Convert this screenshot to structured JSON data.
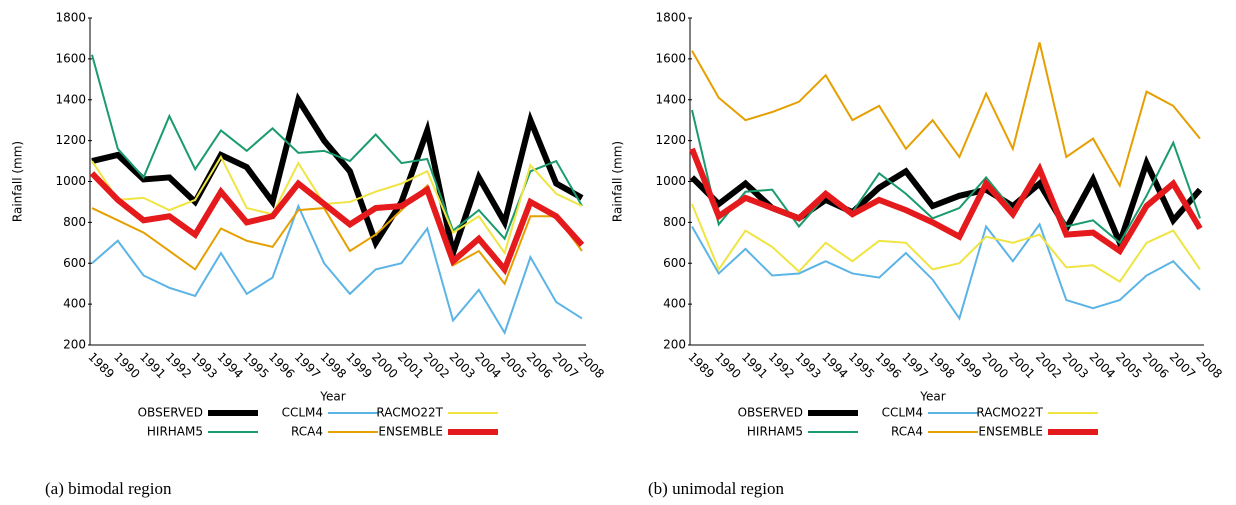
{
  "chart_data": [
    {
      "type": "line",
      "caption": "(a)   bimodal region",
      "y_label": "Rainfall (mm)",
      "x_label": "Year",
      "categories": [
        "1989",
        "1990",
        "1991",
        "1992",
        "1993",
        "1994",
        "1995",
        "1996",
        "1997",
        "1998",
        "1999",
        "2000",
        "2001",
        "2002",
        "2003",
        "2004",
        "2005",
        "2006",
        "2007",
        "2008"
      ],
      "ylim": [
        200,
        1800
      ],
      "yticks": [
        200,
        400,
        600,
        800,
        1000,
        1200,
        1400,
        1600,
        1800
      ],
      "series": [
        {
          "name": "OBSERVED",
          "color": "#000000",
          "line_width": 6,
          "values": [
            1100,
            1130,
            1010,
            1020,
            900,
            1130,
            1070,
            900,
            1400,
            1200,
            1050,
            700,
            900,
            1250,
            650,
            1020,
            800,
            1300,
            990,
            920
          ]
        },
        {
          "name": "HIRHAM5",
          "color": "#1a9b6c",
          "line_width": 2,
          "values": [
            1620,
            1160,
            1020,
            1320,
            1060,
            1250,
            1150,
            1260,
            1140,
            1150,
            1100,
            1230,
            1090,
            1110,
            760,
            860,
            720,
            1050,
            1100,
            880
          ]
        },
        {
          "name": "CCLM4",
          "color": "#5bb4e5",
          "line_width": 2,
          "values": [
            600,
            710,
            540,
            480,
            440,
            650,
            450,
            530,
            880,
            600,
            450,
            570,
            600,
            770,
            320,
            470,
            260,
            630,
            410,
            330
          ]
        },
        {
          "name": "RCA4",
          "color": "#e69f00",
          "line_width": 2,
          "values": [
            870,
            810,
            750,
            660,
            570,
            770,
            710,
            680,
            860,
            870,
            660,
            740,
            860,
            980,
            590,
            660,
            500,
            830,
            830,
            660
          ]
        },
        {
          "name": "RACMO22T",
          "color": "#f0e442",
          "line_width": 2,
          "values": [
            1100,
            910,
            920,
            860,
            910,
            1120,
            870,
            840,
            1090,
            890,
            900,
            950,
            990,
            1050,
            750,
            830,
            650,
            1080,
            940,
            880
          ]
        },
        {
          "name": "ENSEMBLE",
          "color": "#e41a1c",
          "line_width": 6,
          "values": [
            1040,
            910,
            810,
            830,
            740,
            950,
            800,
            830,
            990,
            890,
            790,
            870,
            880,
            960,
            610,
            720,
            570,
            900,
            830,
            690
          ]
        }
      ]
    },
    {
      "type": "line",
      "caption": "(b) unimodal region",
      "y_label": "Rainfall (mm)",
      "x_label": "Year",
      "categories": [
        "1989",
        "1990",
        "1991",
        "1992",
        "1993",
        "1994",
        "1995",
        "1996",
        "1997",
        "1998",
        "1999",
        "2000",
        "2001",
        "2002",
        "2003",
        "2004",
        "2005",
        "2006",
        "2007",
        "2008"
      ],
      "ylim": [
        200,
        1800
      ],
      "yticks": [
        200,
        400,
        600,
        800,
        1000,
        1200,
        1400,
        1600,
        1800
      ],
      "series": [
        {
          "name": "OBSERVED",
          "color": "#000000",
          "line_width": 6,
          "values": [
            1020,
            890,
            990,
            870,
            820,
            910,
            850,
            970,
            1050,
            880,
            930,
            960,
            880,
            990,
            770,
            1010,
            700,
            1090,
            810,
            960
          ]
        },
        {
          "name": "HIRHAM5",
          "color": "#1a9b6c",
          "line_width": 2,
          "values": [
            1350,
            790,
            950,
            960,
            780,
            930,
            850,
            1040,
            940,
            820,
            870,
            1020,
            860,
            1050,
            780,
            810,
            700,
            930,
            1190,
            820
          ]
        },
        {
          "name": "CCLM4",
          "color": "#5bb4e5",
          "line_width": 2,
          "values": [
            780,
            550,
            670,
            540,
            550,
            610,
            550,
            530,
            650,
            520,
            330,
            780,
            610,
            790,
            420,
            380,
            420,
            540,
            610,
            470
          ]
        },
        {
          "name": "RCA4",
          "color": "#e69f00",
          "line_width": 2,
          "values": [
            1640,
            1410,
            1300,
            1340,
            1390,
            1520,
            1300,
            1370,
            1160,
            1300,
            1120,
            1430,
            1160,
            1680,
            1120,
            1210,
            980,
            1440,
            1370,
            1210
          ]
        },
        {
          "name": "RACMO22T",
          "color": "#f0e442",
          "line_width": 2,
          "values": [
            890,
            570,
            760,
            680,
            560,
            700,
            610,
            710,
            700,
            570,
            600,
            730,
            700,
            740,
            580,
            590,
            510,
            700,
            760,
            570
          ]
        },
        {
          "name": "ENSEMBLE",
          "color": "#e41a1c",
          "line_width": 6,
          "values": [
            1160,
            830,
            920,
            870,
            820,
            940,
            840,
            910,
            860,
            800,
            730,
            990,
            840,
            1060,
            740,
            750,
            660,
            880,
            990,
            770
          ]
        }
      ]
    }
  ]
}
